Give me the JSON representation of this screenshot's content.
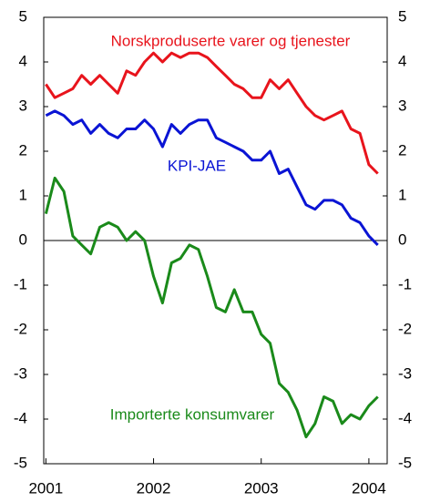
{
  "chart_data": {
    "type": "line",
    "x": [
      2001,
      2001.083,
      2001.167,
      2001.25,
      2001.333,
      2001.417,
      2001.5,
      2001.583,
      2001.667,
      2001.75,
      2001.833,
      2001.917,
      2002,
      2002.083,
      2002.167,
      2002.25,
      2002.333,
      2002.417,
      2002.5,
      2002.583,
      2002.667,
      2002.75,
      2002.833,
      2002.917,
      2003,
      2003.083,
      2003.167,
      2003.25,
      2003.333,
      2003.417,
      2003.5,
      2003.583,
      2003.667,
      2003.75,
      2003.833,
      2003.917,
      2004,
      2004.083
    ],
    "series": [
      {
        "name": "Norskproduserte varer og tjenester",
        "color": "#e8141c",
        "values": [
          3.5,
          3.2,
          3.3,
          3.4,
          3.7,
          3.5,
          3.7,
          3.5,
          3.3,
          3.8,
          3.7,
          4.0,
          4.2,
          4.0,
          4.2,
          4.1,
          4.2,
          4.2,
          4.1,
          3.9,
          3.7,
          3.5,
          3.4,
          3.2,
          3.2,
          3.6,
          3.4,
          3.6,
          3.3,
          3.0,
          2.8,
          2.7,
          2.8,
          2.9,
          2.5,
          2.4,
          1.7,
          1.5
        ]
      },
      {
        "name": "KPI-JAE",
        "color": "#0a14d4",
        "values": [
          2.8,
          2.9,
          2.8,
          2.6,
          2.7,
          2.4,
          2.6,
          2.4,
          2.3,
          2.5,
          2.5,
          2.7,
          2.5,
          2.1,
          2.6,
          2.4,
          2.6,
          2.7,
          2.7,
          2.3,
          2.2,
          2.1,
          2.0,
          1.8,
          1.8,
          2.0,
          1.5,
          1.6,
          1.2,
          0.8,
          0.7,
          0.9,
          0.9,
          0.8,
          0.5,
          0.4,
          0.1,
          -0.1
        ]
      },
      {
        "name": "Importerte konsumvarer",
        "color": "#1a8a1a",
        "values": [
          0.6,
          1.4,
          1.1,
          0.1,
          -0.1,
          -0.3,
          0.3,
          0.4,
          0.3,
          0.0,
          0.2,
          0.0,
          -0.8,
          -1.4,
          -0.5,
          -0.4,
          -0.1,
          -0.2,
          -0.8,
          -1.5,
          -1.6,
          -1.1,
          -1.6,
          -1.6,
          -2.1,
          -2.3,
          -3.2,
          -3.4,
          -3.8,
          -4.4,
          -4.1,
          -3.5,
          -3.6,
          -4.1,
          -3.9,
          -4.0,
          -3.7,
          -3.5
        ]
      }
    ],
    "xlim": [
      2000.98,
      2004.17
    ],
    "xticks": [
      2001,
      2002,
      2003,
      2004
    ],
    "ylim": [
      -5,
      5
    ],
    "yticks": [
      -5,
      -4,
      -3,
      -2,
      -1,
      0,
      1,
      2,
      3,
      4,
      5
    ],
    "y2lim": [
      -5,
      5
    ],
    "y2ticks": [
      -5,
      -4,
      -3,
      -2,
      -1,
      0,
      1,
      2,
      3,
      4,
      5
    ]
  }
}
